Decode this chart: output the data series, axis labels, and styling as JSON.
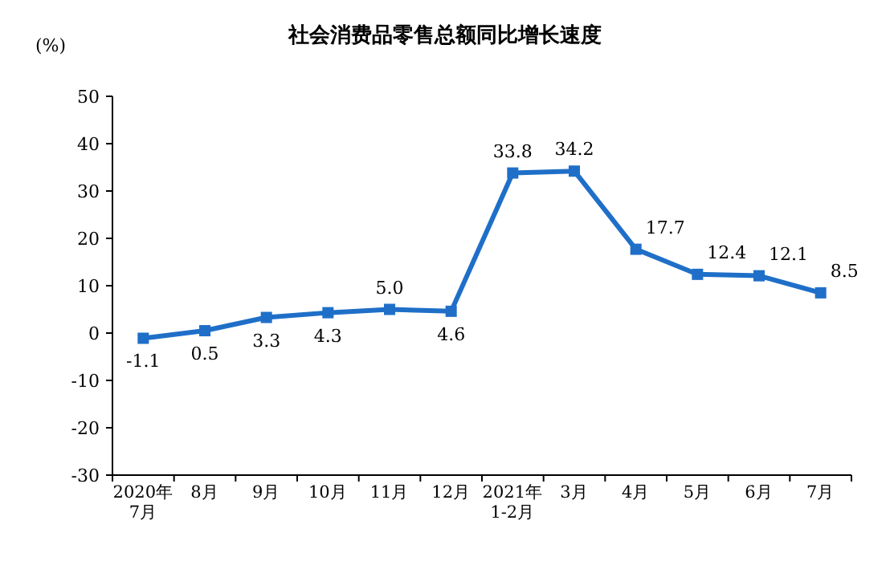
{
  "chart_data": {
    "type": "line",
    "title": "社会消费品零售总额同比增长速度",
    "ylabel": "(%)",
    "categories": [
      "2020年\n7月",
      "8月",
      "9月",
      "10月",
      "11月",
      "12月",
      "2021年\n1-2月",
      "3月",
      "4月",
      "5月",
      "6月",
      "7月"
    ],
    "series": [
      {
        "color": "#1f6fc8",
        "values": [
          -1.1,
          0.5,
          3.3,
          4.3,
          5.0,
          4.6,
          33.8,
          34.2,
          17.7,
          12.4,
          12.1,
          8.5
        ],
        "value_labels": [
          "-1.1",
          "0.5",
          "3.3",
          "4.3",
          "5.0",
          "4.6",
          "33.8",
          "34.2",
          "17.7",
          "12.4",
          "12.1",
          "8.5"
        ]
      }
    ],
    "ylim": [
      -30,
      50
    ],
    "yticks": [
      -30,
      -20,
      -10,
      0,
      10,
      20,
      30,
      40,
      50
    ],
    "marker": "square",
    "line_style": "solid",
    "grid": false
  }
}
